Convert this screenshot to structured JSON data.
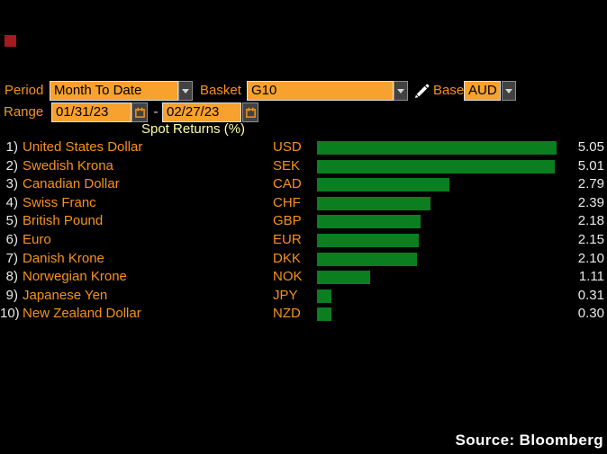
{
  "colors": {
    "background": "#000000",
    "accent_orange": "#f7921c",
    "input_bg": "#f7a12e",
    "bar_green": "#0b7e20",
    "title_yellow": "#ffffa5",
    "value_text": "#e9e9e9",
    "marker_red": "#a6191e"
  },
  "controls": {
    "period": {
      "label": "Period",
      "value": "Month To Date"
    },
    "basket": {
      "label": "Basket",
      "value": "G10"
    },
    "base": {
      "label": "Base",
      "value": "AUD"
    },
    "range": {
      "label": "Range",
      "start_date": "01/31/23",
      "separator": "-",
      "end_date": "02/27/23"
    }
  },
  "chart_data": {
    "type": "bar",
    "orientation": "horizontal",
    "title": "Spot Returns (%)",
    "xlim": [
      0,
      5.05
    ],
    "grid": false,
    "legend": "none",
    "bar_color": "#0b7e20",
    "ranks": [
      "1)",
      "2)",
      "3)",
      "4)",
      "5)",
      "6)",
      "7)",
      "8)",
      "9)",
      "10)"
    ],
    "categories": [
      "United States Dollar",
      "Swedish Krona",
      "Canadian Dollar",
      "Swiss Franc",
      "British Pound",
      "Euro",
      "Danish Krone",
      "Norwegian Krone",
      "Japanese Yen",
      "New Zealand Dollar"
    ],
    "codes": [
      "USD",
      "SEK",
      "CAD",
      "CHF",
      "GBP",
      "EUR",
      "DKK",
      "NOK",
      "JPY",
      "NZD"
    ],
    "values": [
      5.05,
      5.01,
      2.79,
      2.39,
      2.18,
      2.15,
      2.1,
      1.11,
      0.31,
      0.3
    ],
    "value_labels": [
      "5.05",
      "5.01",
      "2.79",
      "2.39",
      "2.18",
      "2.15",
      "2.10",
      "1.11",
      "0.31",
      "0.30"
    ]
  },
  "footer": {
    "source": "Source: Bloomberg"
  }
}
